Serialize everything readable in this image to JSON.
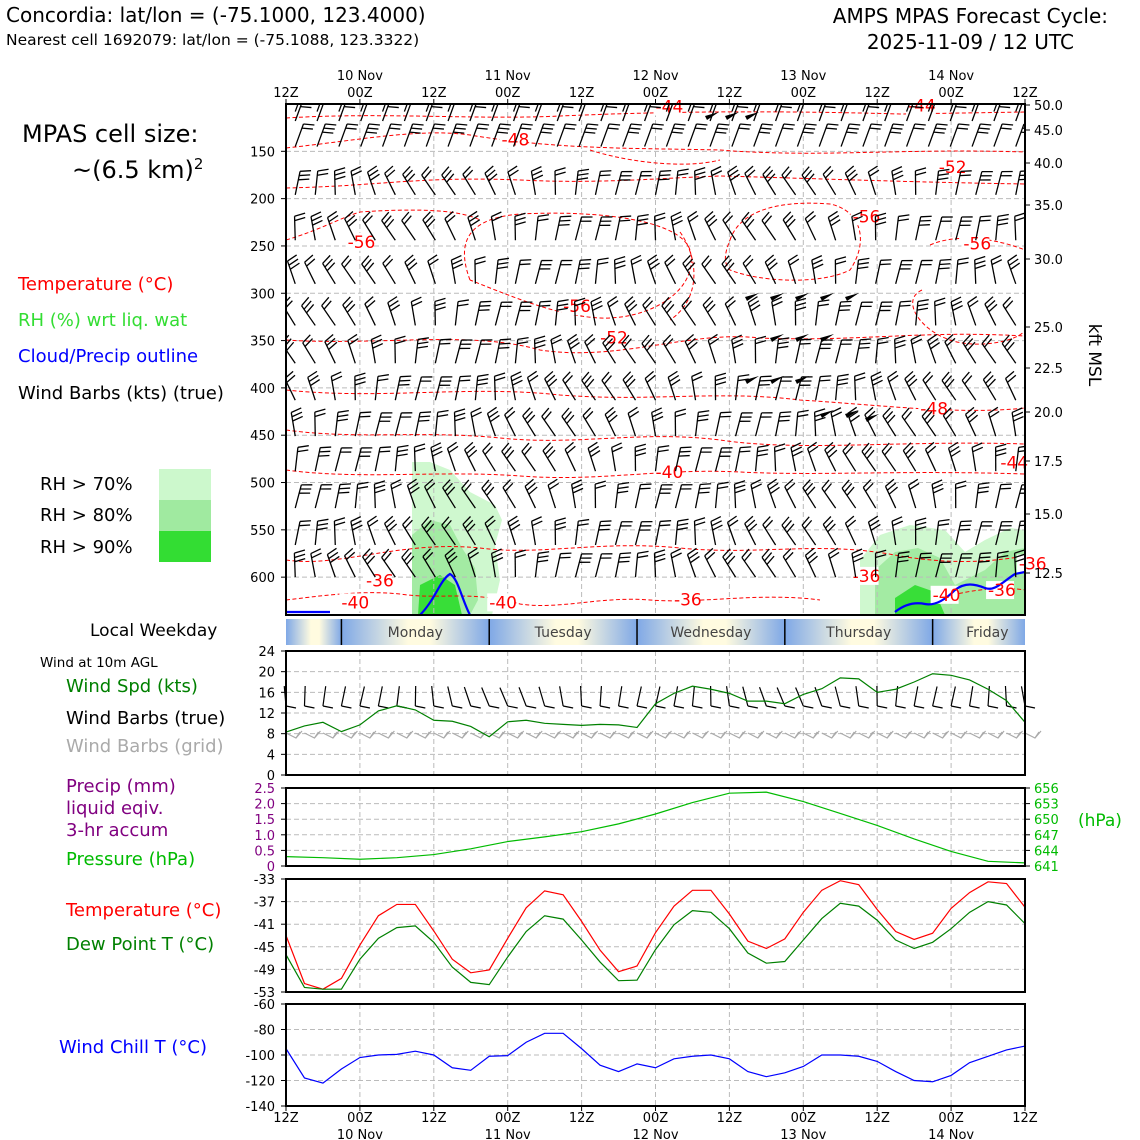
{
  "header": {
    "station_line": "Concordia: lat/lon = (-75.1000, 123.4000)",
    "cell_line": "Nearest cell 1692079: lat/lon = (-75.1088, 123.3322)",
    "cycle_title": "AMPS MPAS Forecast Cycle:",
    "cycle_time": "2025-11-09 / 12 UTC"
  },
  "cell_size": {
    "line1": "MPAS cell size:",
    "line2": "~(6.5 km)",
    "exp": "2"
  },
  "legend_upper": {
    "temperature": "Temperature (°C)",
    "rh": "RH (%) wrt liq. wat",
    "cloud": "Cloud/Precip outline",
    "barbs": "Wind Barbs (kts) (true)",
    "rh70": "RH > 70%",
    "rh80": "RH > 80%",
    "rh90": "RH > 90%",
    "local_weekday": "Local Weekday",
    "wind10m": "Wind at 10m AGL"
  },
  "legend_lower": {
    "wind_spd": "Wind Spd (kts)",
    "barbs_true": "Wind Barbs (true)",
    "barbs_grid": "Wind Barbs (grid)",
    "precip1": "Precip (mm)",
    "precip2": "liquid eqiv.",
    "precip3": "3-hr accum",
    "pressure": "Pressure (hPa)",
    "temperature": "Temperature (°C)",
    "dewpoint": "Dew Point T (°C)",
    "windchill": "Wind Chill T (°C)"
  },
  "colors": {
    "temp": "#ff0000",
    "rh_label": "#33dd33",
    "cloud": "#0000ff",
    "rh70": "#ccf8cc",
    "rh80": "#a0eaa0",
    "rh90": "#33dd33",
    "wind_spd": "#008000",
    "barb_grid": "#aaaaaa",
    "precip": "#800080",
    "pressure": "#00bb00",
    "dewpoint": "#008000",
    "windchill": "#0000ff"
  },
  "chart_data": {
    "time_axis": {
      "ticks": [
        "12Z",
        "00Z",
        "12Z",
        "00Z",
        "12Z",
        "00Z",
        "12Z",
        "00Z",
        "12Z",
        "00Z",
        "12Z"
      ],
      "days": [
        "10 Nov",
        "11 Nov",
        "12 Nov",
        "13 Nov",
        "14 Nov"
      ],
      "range_hours": [
        0,
        120
      ]
    },
    "weekday_bar": {
      "days": [
        "Monday",
        "Tuesday",
        "Wednesday",
        "Thursday",
        "Friday"
      ]
    },
    "upper": {
      "type": "contour",
      "pressure_ticks": [
        150,
        200,
        250,
        300,
        350,
        400,
        450,
        500,
        550,
        600
      ],
      "pressure_range": [
        100,
        640
      ],
      "height_ticks": [
        "50.0",
        "45.0",
        "40.0",
        "35.0",
        "30.0",
        "25.0",
        "22.5",
        "20.0",
        "17.5",
        "15.0",
        "12.5"
      ],
      "height_unit": "kft MSL",
      "temp_contour_labels": [
        {
          "t": 35,
          "p": 144,
          "v": "-48"
        },
        {
          "t": 60,
          "p": 109,
          "v": "-44"
        },
        {
          "t": 101,
          "p": 108,
          "v": "-44"
        },
        {
          "t": 10,
          "p": 252,
          "v": "-56"
        },
        {
          "t": 45,
          "p": 320,
          "v": "-56"
        },
        {
          "t": 92,
          "p": 225,
          "v": "-56"
        },
        {
          "t": 110,
          "p": 254,
          "v": "-56"
        },
        {
          "t": 106,
          "p": 173,
          "v": "-52"
        },
        {
          "t": 51,
          "p": 353,
          "v": "-52"
        },
        {
          "t": 103,
          "p": 428,
          "v": "-48"
        },
        {
          "t": 60,
          "p": 495,
          "v": "-40"
        },
        {
          "t": 116,
          "p": 485,
          "v": "-44"
        },
        {
          "t": 13,
          "p": 610,
          "v": "-36"
        },
        {
          "t": 9,
          "p": 633,
          "v": "-40"
        },
        {
          "t": 33,
          "p": 633,
          "v": "-40"
        },
        {
          "t": 63,
          "p": 630,
          "v": "-36"
        },
        {
          "t": 92,
          "p": 605,
          "v": "-36"
        },
        {
          "t": 105,
          "p": 625,
          "v": "-40"
        },
        {
          "t": 114,
          "p": 620,
          "v": "-36"
        },
        {
          "t": 119,
          "p": 592,
          "v": "-36"
        }
      ]
    },
    "wind10m": {
      "type": "line",
      "ylim": [
        0,
        24
      ],
      "yticks": [
        0,
        4,
        8,
        12,
        16,
        20,
        24
      ],
      "x": [
        0,
        3,
        6,
        9,
        12,
        15,
        18,
        21,
        24,
        27,
        30,
        33,
        36,
        39,
        42,
        45,
        48,
        51,
        54,
        57,
        60,
        63,
        66,
        69,
        72,
        75,
        78,
        81,
        84,
        87,
        90,
        93,
        96,
        99,
        102,
        105,
        108,
        111,
        114,
        117,
        120
      ],
      "speed": [
        8.3,
        9.5,
        10.2,
        8.4,
        9.7,
        12.4,
        13.4,
        12.6,
        10.6,
        10.4,
        9.4,
        7.4,
        10.3,
        10.6,
        10.0,
        9.8,
        9.6,
        9.8,
        9.7,
        9.2,
        13.8,
        15.8,
        17.2,
        16.6,
        15.8,
        14.3,
        14.3,
        13.8,
        15.6,
        16.7,
        18.8,
        18.6,
        16.0,
        16.6,
        18.0,
        19.6,
        19.3,
        18.4,
        16.6,
        14.4,
        10.2
      ]
    },
    "precip_pressure": {
      "type": "line",
      "precip_ylim": [
        0,
        2.5
      ],
      "precip_ticks": [
        "0",
        "0.5",
        "1.0",
        "1.5",
        "2.0",
        "2.5"
      ],
      "pressure_ylim": [
        641,
        656
      ],
      "pressure_ticks": [
        "641",
        "644",
        "647",
        "650",
        "653",
        "656"
      ],
      "pressure_unit": "(hPa)",
      "x": [
        0,
        6,
        12,
        18,
        24,
        30,
        36,
        42,
        48,
        54,
        60,
        66,
        72,
        78,
        84,
        90,
        96,
        102,
        108,
        114,
        120
      ],
      "pressure": [
        642.8,
        642.6,
        642.3,
        642.6,
        643.2,
        644.3,
        645.7,
        646.6,
        647.6,
        649.1,
        651.0,
        653.2,
        655.0,
        655.2,
        653.4,
        651.1,
        648.8,
        646.2,
        643.8,
        641.9,
        641.6
      ],
      "precip": [
        0,
        0,
        0,
        0,
        0,
        0,
        0,
        0,
        0,
        0,
        0,
        0,
        0,
        0,
        0,
        0,
        0,
        0,
        0,
        0,
        0
      ]
    },
    "temp_dew": {
      "type": "line",
      "ylim": [
        -53,
        -33
      ],
      "yticks": [
        "-33",
        "-37",
        "-41",
        "-45",
        "-49",
        "-53"
      ],
      "x": [
        0,
        3,
        6,
        9,
        12,
        15,
        18,
        21,
        24,
        27,
        30,
        33,
        36,
        39,
        42,
        45,
        48,
        51,
        54,
        57,
        60,
        63,
        66,
        69,
        72,
        75,
        78,
        81,
        84,
        87,
        90,
        93,
        96,
        99,
        102,
        105,
        108,
        111,
        114,
        117,
        120
      ],
      "temperature": [
        -43,
        -51.5,
        -52.5,
        -50.6,
        -44.7,
        -39.5,
        -37.5,
        -37.5,
        -42.2,
        -47.2,
        -49.6,
        -49.1,
        -43.5,
        -38.1,
        -35.1,
        -35.8,
        -40.5,
        -45.6,
        -49.4,
        -48.4,
        -42.5,
        -37.8,
        -35,
        -35,
        -39.2,
        -44,
        -45.3,
        -43.6,
        -38.9,
        -35,
        -33.3,
        -34,
        -38.4,
        -42.3,
        -43.7,
        -42.6,
        -38.2,
        -35.4,
        -33.5,
        -33.8,
        -38
      ],
      "dewpoint": [
        -46.4,
        -52.2,
        -52.5,
        -52.5,
        -47.2,
        -43.5,
        -41.6,
        -41.3,
        -44.2,
        -48.6,
        -51.3,
        -51.7,
        -46.8,
        -42.3,
        -39.5,
        -40.1,
        -43.8,
        -47.7,
        -51,
        -50.9,
        -45.5,
        -41.1,
        -38.6,
        -38.9,
        -41.8,
        -46.1,
        -47.9,
        -47.6,
        -43.8,
        -40,
        -37.3,
        -37.8,
        -40.3,
        -43.8,
        -45.3,
        -44.2,
        -41.8,
        -38.9,
        -37,
        -37.6,
        -40.9
      ]
    },
    "windchill": {
      "type": "line",
      "ylim": [
        -140,
        -60
      ],
      "yticks": [
        "-60",
        "-80",
        "-100",
        "-120",
        "-140"
      ],
      "x": [
        0,
        3,
        6,
        9,
        12,
        15,
        18,
        21,
        24,
        27,
        30,
        33,
        36,
        39,
        42,
        45,
        48,
        51,
        54,
        57,
        60,
        63,
        66,
        69,
        72,
        75,
        78,
        81,
        84,
        87,
        90,
        93,
        96,
        99,
        102,
        105,
        108,
        111,
        114,
        117,
        120
      ],
      "values": [
        -95,
        -118,
        -122,
        -111,
        -102,
        -100,
        -99.5,
        -97,
        -100,
        -110,
        -112,
        -101,
        -100.5,
        -90,
        -83,
        -83,
        -95,
        -108,
        -113,
        -107,
        -110,
        -103,
        -101,
        -100,
        -103,
        -113,
        -117,
        -114,
        -109,
        -100,
        -100,
        -101,
        -105,
        -113,
        -120,
        -121,
        -116,
        -106,
        -101,
        -96,
        -93
      ]
    }
  }
}
